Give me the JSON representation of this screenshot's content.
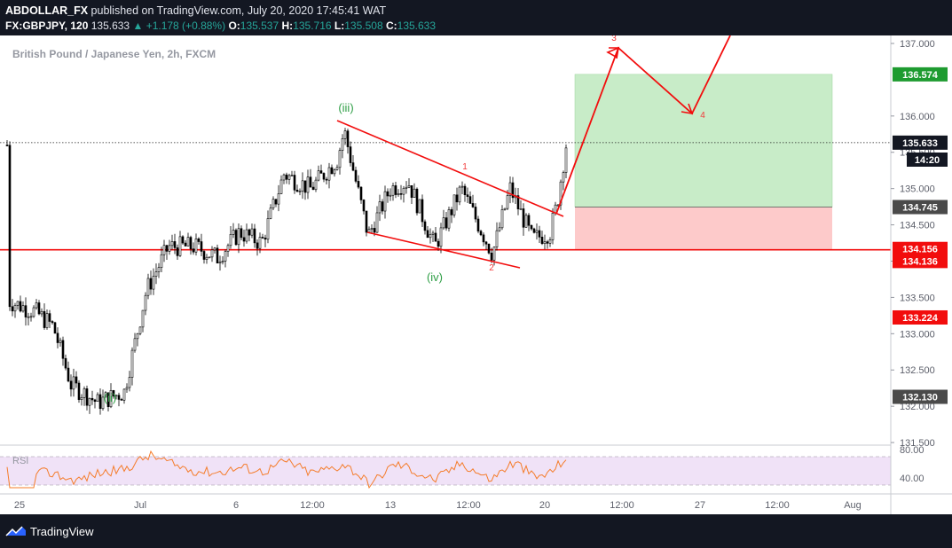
{
  "header": {
    "publisher": "ABDOLLAR_FX",
    "published_text": "published on TradingView.com, July 20, 2020 17:45:41 WAT",
    "symbol": "FX:GBPJPY, 120",
    "last": "135.633",
    "change": "+1.178 (+0.88%)",
    "o_label": "O:",
    "o_value": "135.537",
    "h_label": "H:",
    "h_value": "135.716",
    "l_label": "L:",
    "l_value": "135.508",
    "c_label": "C:",
    "c_value": "135.633"
  },
  "footer": {
    "brand": "TradingView"
  },
  "chart_data": {
    "type": "candlestick",
    "title": "British Pound / Japanese Yen, 2h, FXCM",
    "ylim": [
      131.5,
      137.06
    ],
    "yticks": [
      "131.500",
      "132.000",
      "132.500",
      "133.000",
      "133.500",
      "134.000",
      "134.500",
      "135.000",
      "135.500",
      "136.000",
      "137.000"
    ],
    "xticks": [
      "25",
      "Jul",
      "6",
      "12:00",
      "13",
      "12:00",
      "20",
      "12:00",
      "27",
      "12:00",
      "Aug"
    ],
    "price_labels": [
      {
        "value": 136.574,
        "text": "136.574",
        "color": "#1e9b30"
      },
      {
        "value": 135.633,
        "text": "135.633",
        "color": "#131722"
      },
      {
        "value": 134.745,
        "text": "134.745",
        "color": "#4a4a4a"
      },
      {
        "value": 134.156,
        "text": "134.156",
        "color": "#f20d0d"
      },
      {
        "value": 134.136,
        "text": "134.136",
        "color": "#f20d0d"
      },
      {
        "value": 133.224,
        "text": "133.224",
        "color": "#f20d0d"
      },
      {
        "value": 132.13,
        "text": "132.130",
        "color": "#4a4a4a"
      }
    ],
    "countdown": "14:20",
    "support_level": 134.156,
    "position": {
      "target": 136.574,
      "entry": 134.745,
      "stop": 134.156
    },
    "wave_labels": [
      {
        "text": "(iii)",
        "color": "#2e9e45"
      },
      {
        "text": "(iv)",
        "color": "#2e9e45"
      },
      {
        "text": "(ii)",
        "color": "#2e9e45"
      },
      {
        "text": "1",
        "color": "#f23a3a"
      },
      {
        "text": "2",
        "color": "#f23a3a"
      },
      {
        "text": "4",
        "color": "#f23a3a"
      },
      {
        "text": "3",
        "color": "#f23a3a"
      }
    ],
    "rsi": {
      "label": "RSI",
      "levels": [
        "80.00",
        "40.00"
      ],
      "color": "#f57c2a"
    },
    "colors": {
      "candle": "#000000",
      "accent": "#f20d0d",
      "target_zone": "#c8ecc8",
      "stop_zone": "#fdcaca"
    }
  }
}
